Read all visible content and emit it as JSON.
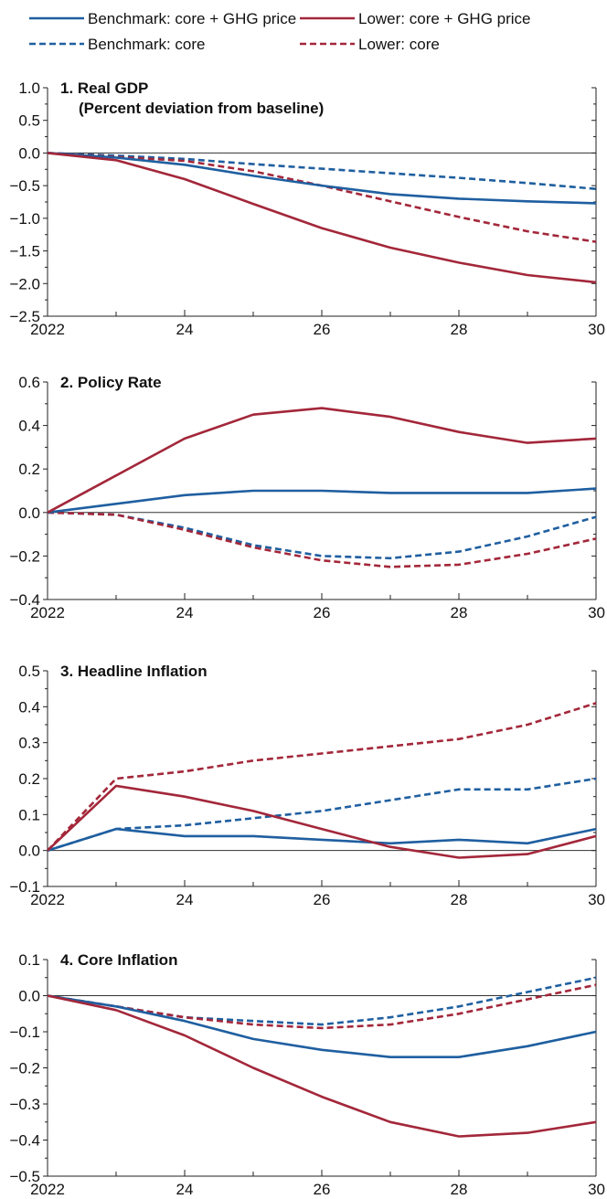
{
  "legend": [
    {
      "label": "Benchmark: core + GHG price",
      "color": "#1f5fa0",
      "dash": "solid"
    },
    {
      "label": "Benchmark: core",
      "color": "#1f5fa0",
      "dash": "dashed"
    },
    {
      "label": "Lower: core + GHG price",
      "color": "#a3273a",
      "dash": "solid"
    },
    {
      "label": "Lower: core",
      "color": "#a3273a",
      "dash": "dashed"
    }
  ],
  "chart_data": [
    {
      "type": "line",
      "title": "1. Real GDP",
      "subtitle": "(Percent deviation from baseline)",
      "x": [
        2022,
        2023,
        2024,
        2025,
        2026,
        2027,
        2028,
        2029,
        2030
      ],
      "x_tick_labels": [
        "2022",
        "24",
        "26",
        "28",
        "30"
      ],
      "x_tick_values": [
        2022,
        2024,
        2026,
        2028,
        2030
      ],
      "ylim": [
        -2.5,
        1.0
      ],
      "y_ticks": [
        -2.5,
        -2.0,
        -1.5,
        -1.0,
        -0.5,
        0.0,
        0.5,
        1.0
      ],
      "y_tick_labels": [
        "−2.5",
        "−2.0",
        "−1.5",
        "−1.0",
        "−0.5",
        "0.0",
        "0.5",
        "1.0"
      ],
      "series": [
        {
          "name": "Benchmark: core + GHG price",
          "values": [
            0.0,
            -0.07,
            -0.18,
            -0.35,
            -0.5,
            -0.63,
            -0.7,
            -0.74,
            -0.77
          ]
        },
        {
          "name": "Benchmark: core",
          "values": [
            0.0,
            -0.04,
            -0.09,
            -0.17,
            -0.24,
            -0.31,
            -0.38,
            -0.46,
            -0.55
          ]
        },
        {
          "name": "Lower: core + GHG price",
          "values": [
            0.0,
            -0.11,
            -0.4,
            -0.78,
            -1.15,
            -1.45,
            -1.68,
            -1.87,
            -1.98
          ]
        },
        {
          "name": "Lower: core",
          "values": [
            0.0,
            -0.06,
            -0.12,
            -0.28,
            -0.5,
            -0.74,
            -0.98,
            -1.2,
            -1.36
          ]
        }
      ]
    },
    {
      "type": "line",
      "title": "2. Policy Rate",
      "subtitle": "",
      "x": [
        2022,
        2023,
        2024,
        2025,
        2026,
        2027,
        2028,
        2029,
        2030
      ],
      "x_tick_labels": [
        "2022",
        "24",
        "26",
        "28",
        "30"
      ],
      "x_tick_values": [
        2022,
        2024,
        2026,
        2028,
        2030
      ],
      "ylim": [
        -0.4,
        0.6
      ],
      "y_ticks": [
        -0.4,
        -0.2,
        0.0,
        0.2,
        0.4,
        0.6
      ],
      "y_tick_labels": [
        "−0.4",
        "−0.2",
        "0.0",
        "0.2",
        "0.4",
        "0.6"
      ],
      "series": [
        {
          "name": "Benchmark: core + GHG price",
          "values": [
            0.0,
            0.04,
            0.08,
            0.1,
            0.1,
            0.09,
            0.09,
            0.09,
            0.11
          ]
        },
        {
          "name": "Benchmark: core",
          "values": [
            0.0,
            -0.01,
            -0.07,
            -0.15,
            -0.2,
            -0.21,
            -0.18,
            -0.11,
            -0.02
          ]
        },
        {
          "name": "Lower: core + GHG price",
          "values": [
            0.0,
            0.17,
            0.34,
            0.45,
            0.48,
            0.44,
            0.37,
            0.32,
            0.34
          ]
        },
        {
          "name": "Lower: core",
          "values": [
            0.0,
            -0.01,
            -0.08,
            -0.16,
            -0.22,
            -0.25,
            -0.24,
            -0.19,
            -0.12
          ]
        }
      ]
    },
    {
      "type": "line",
      "title": "3. Headline Inflation",
      "subtitle": "",
      "x": [
        2022,
        2023,
        2024,
        2025,
        2026,
        2027,
        2028,
        2029,
        2030
      ],
      "x_tick_labels": [
        "2022",
        "24",
        "26",
        "28",
        "30"
      ],
      "x_tick_values": [
        2022,
        2024,
        2026,
        2028,
        2030
      ],
      "ylim": [
        -0.1,
        0.5
      ],
      "y_ticks": [
        -0.1,
        0.0,
        0.1,
        0.2,
        0.3,
        0.4,
        0.5
      ],
      "y_tick_labels": [
        "−0.1",
        "0.0",
        "0.1",
        "0.2",
        "0.3",
        "0.4",
        "0.5"
      ],
      "series": [
        {
          "name": "Benchmark: core + GHG price",
          "values": [
            0.0,
            0.06,
            0.04,
            0.04,
            0.03,
            0.02,
            0.03,
            0.02,
            0.06
          ]
        },
        {
          "name": "Benchmark: core",
          "values": [
            0.0,
            0.06,
            0.07,
            0.09,
            0.11,
            0.14,
            0.17,
            0.17,
            0.2
          ]
        },
        {
          "name": "Lower: core + GHG price",
          "values": [
            0.0,
            0.18,
            0.15,
            0.11,
            0.06,
            0.01,
            -0.02,
            -0.01,
            0.04
          ]
        },
        {
          "name": "Lower: core",
          "values": [
            0.0,
            0.2,
            0.22,
            0.25,
            0.27,
            0.29,
            0.31,
            0.35,
            0.41
          ]
        }
      ]
    },
    {
      "type": "line",
      "title": "4. Core Inflation",
      "subtitle": "",
      "x": [
        2022,
        2023,
        2024,
        2025,
        2026,
        2027,
        2028,
        2029,
        2030
      ],
      "x_tick_labels": [
        "2022",
        "24",
        "26",
        "28",
        "30"
      ],
      "x_tick_values": [
        2022,
        2024,
        2026,
        2028,
        2030
      ],
      "ylim": [
        -0.5,
        0.1
      ],
      "y_ticks": [
        -0.5,
        -0.4,
        -0.3,
        -0.2,
        -0.1,
        0.0,
        0.1
      ],
      "y_tick_labels": [
        "−0.5",
        "−0.4",
        "−0.3",
        "−0.2",
        "−0.1",
        "0.0",
        "0.1"
      ],
      "series": [
        {
          "name": "Benchmark: core + GHG price",
          "values": [
            0.0,
            -0.03,
            -0.07,
            -0.12,
            -0.15,
            -0.17,
            -0.17,
            -0.14,
            -0.1
          ]
        },
        {
          "name": "Benchmark: core",
          "values": [
            0.0,
            -0.03,
            -0.06,
            -0.07,
            -0.08,
            -0.06,
            -0.03,
            0.01,
            0.05
          ]
        },
        {
          "name": "Lower: core + GHG price",
          "values": [
            0.0,
            -0.04,
            -0.11,
            -0.2,
            -0.28,
            -0.35,
            -0.39,
            -0.38,
            -0.35
          ]
        },
        {
          "name": "Lower: core",
          "values": [
            0.0,
            -0.03,
            -0.06,
            -0.08,
            -0.09,
            -0.08,
            -0.05,
            -0.01,
            0.03
          ]
        }
      ]
    }
  ]
}
